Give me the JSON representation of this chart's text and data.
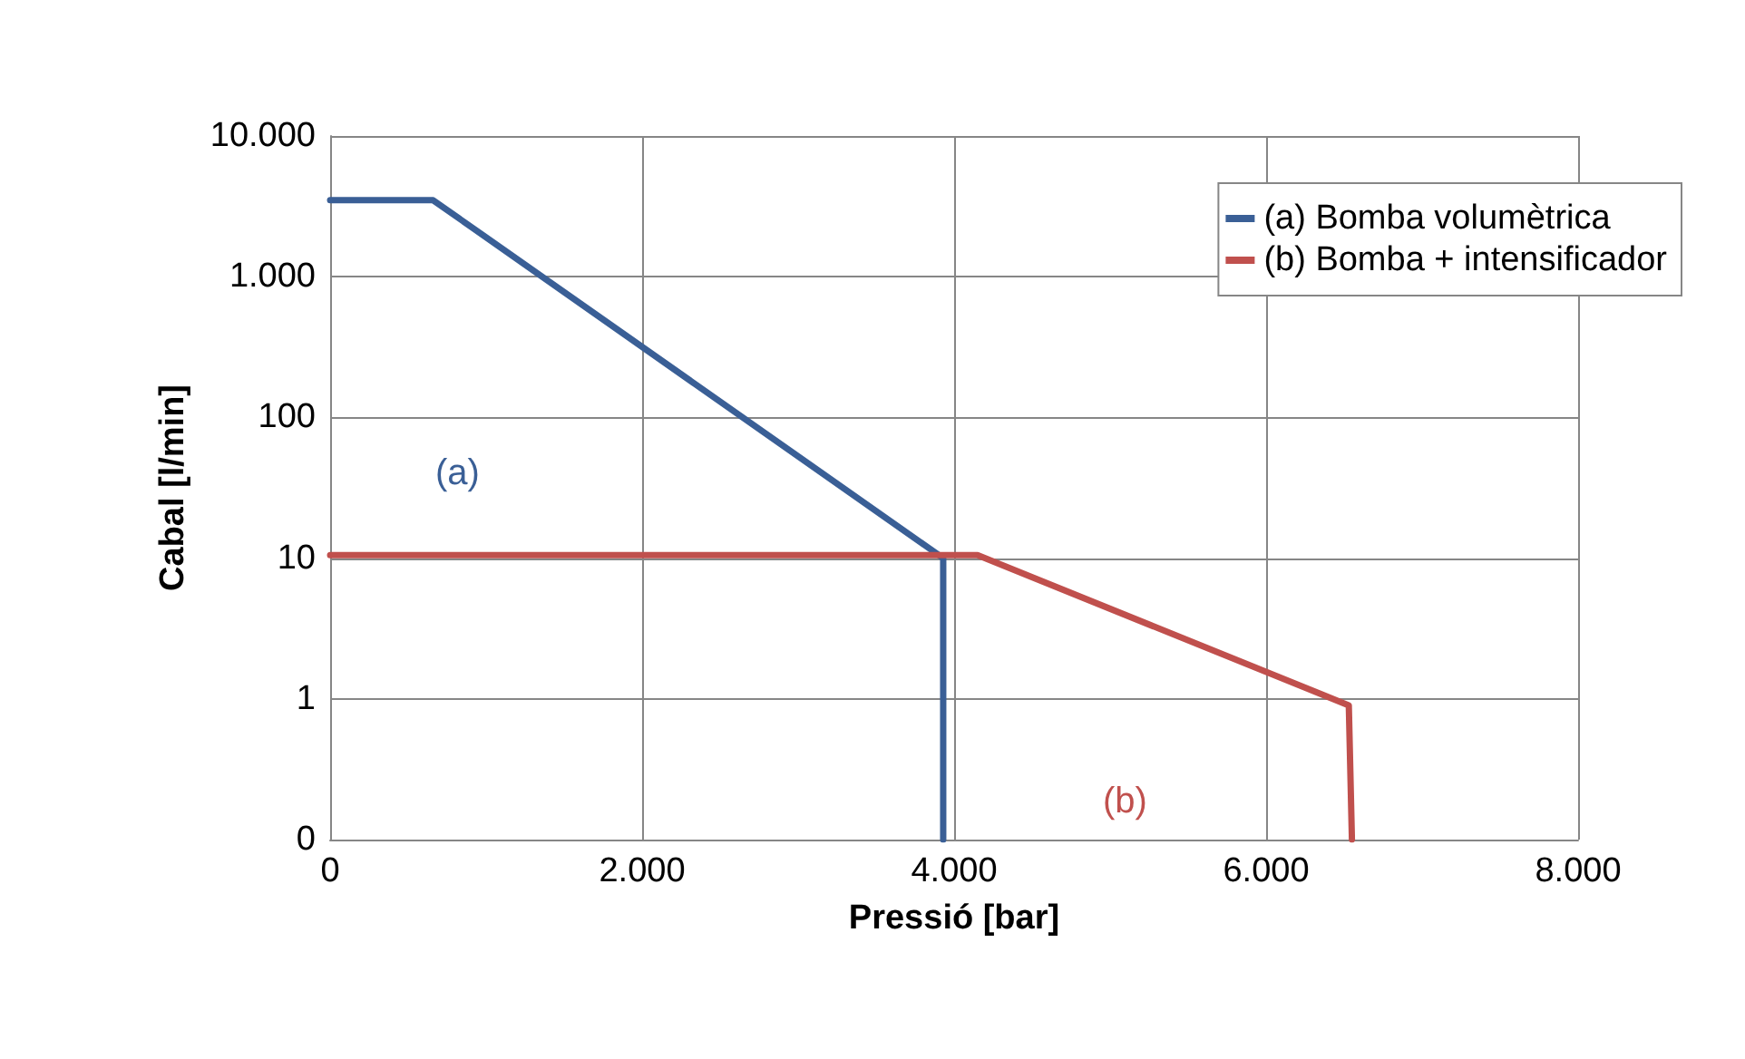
{
  "chart_data": {
    "type": "line",
    "xlabel": "Pressió [bar]",
    "ylabel": "Cabal [l/min]",
    "series": [
      {
        "name": "(a) Bomba volumètrica",
        "color": "#3a5f96",
        "x": [
          0,
          660,
          3930,
          3930
        ],
        "values": [
          3500,
          3500,
          10,
          0.1
        ]
      },
      {
        "name": "(b) Bomba + intensificador",
        "color": "#c0504d",
        "x": [
          0,
          4150,
          6530,
          6550
        ],
        "values": [
          10.5,
          10.5,
          0.9,
          0.1
        ]
      }
    ],
    "annotations": [
      "(a)",
      "(b)"
    ],
    "log": "y",
    "xlim": [
      0,
      8000
    ],
    "xticks": [
      0,
      {
        "value": 2000,
        "label": "2.000"
      },
      {
        "value": 4000,
        "label": "4.000"
      },
      {
        "value": 6000,
        "label": "6.000"
      },
      {
        "value": 8000,
        "label": "8.000"
      }
    ],
    "ylim": [
      0.1,
      10000
    ],
    "yticks": [
      {
        "value": 0.1,
        "label": "0"
      },
      1,
      10,
      100,
      {
        "value": 1000,
        "label": "1.000"
      },
      {
        "value": 10000,
        "label": "10.000"
      }
    ],
    "grid": true,
    "legend": "top right",
    "marker": "none",
    "line_style": "solid"
  }
}
